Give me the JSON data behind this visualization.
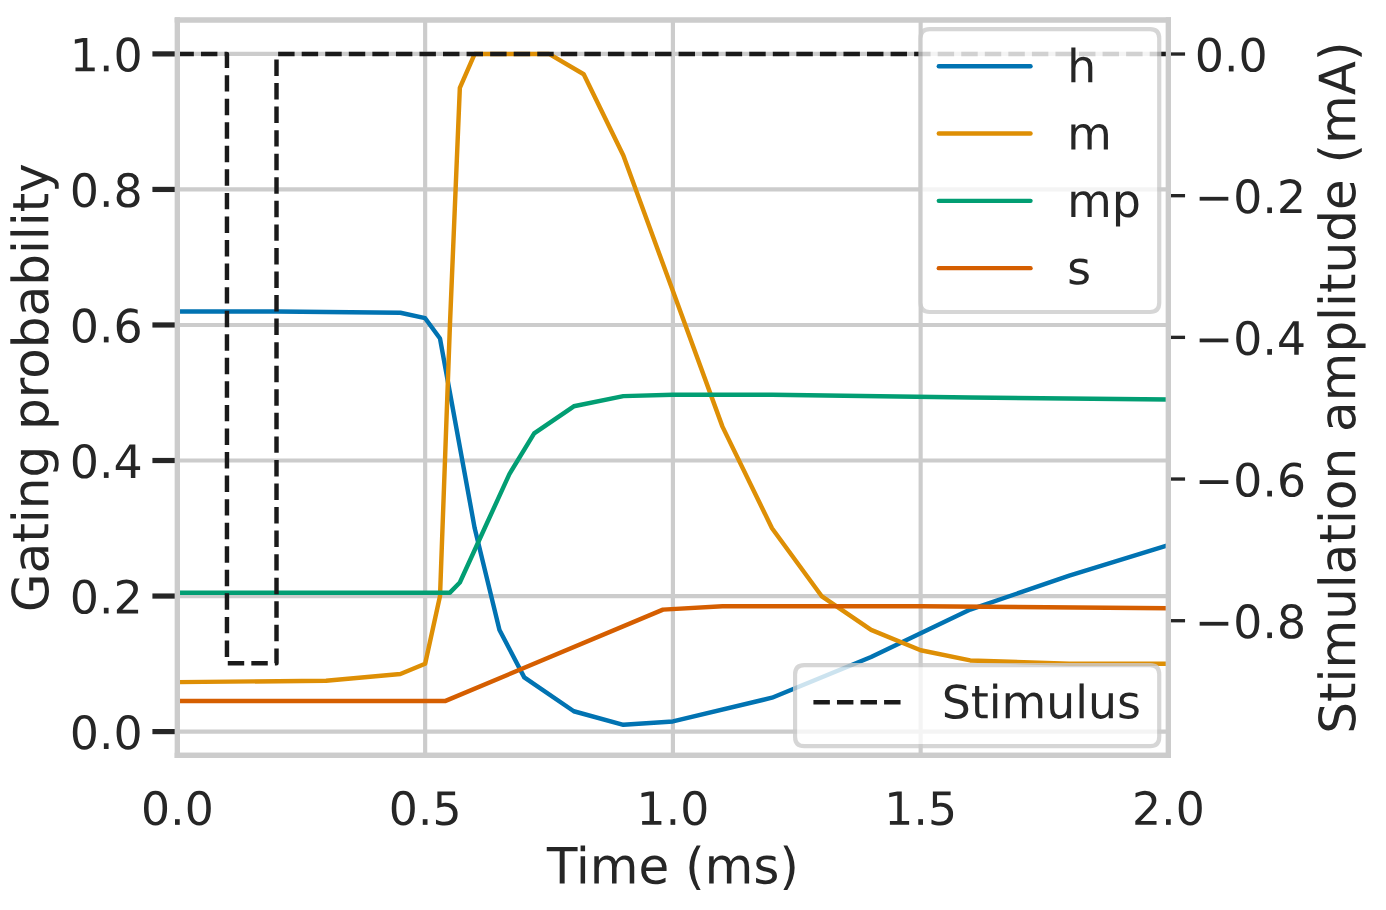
{
  "chart_data": {
    "type": "line",
    "xlabel": "Time (ms)",
    "ylabel": "Gating probability",
    "y2label": "Stimulation amplitude (mA)",
    "xlim": [
      0,
      2.0
    ],
    "xticks": [
      {
        "value": 0,
        "label": "0.0"
      },
      {
        "value": 0.5,
        "label": "0.5"
      },
      {
        "value": 1.0,
        "label": "1.0"
      },
      {
        "value": 1.5,
        "label": "1.5"
      },
      {
        "value": 2.0,
        "label": "2.0"
      }
    ],
    "ylim": [
      -0.035,
      1.05
    ],
    "yticks": [
      {
        "value": 0,
        "label": "0.0"
      },
      {
        "value": 0.2,
        "label": "0.2"
      },
      {
        "value": 0.4,
        "label": "0.4"
      },
      {
        "value": 0.6,
        "label": "0.6"
      },
      {
        "value": 0.8,
        "label": "0.8"
      },
      {
        "value": 1.0,
        "label": "1.0"
      }
    ],
    "y2lim": [
      -0.99,
      0.048
    ],
    "y2ticks": [
      {
        "value": 0,
        "label": "0.0"
      },
      {
        "value": -0.2,
        "label": "−0.2"
      },
      {
        "value": -0.4,
        "label": "−0.4"
      },
      {
        "value": -0.6,
        "label": "−0.6"
      },
      {
        "value": -0.8,
        "label": "−0.8"
      }
    ],
    "grid": true,
    "legend": "top right",
    "line_style": "solid",
    "series": [
      {
        "name": "h",
        "color": "#0173b2",
        "x": [
          0,
          0.2,
          0.45,
          0.5,
          0.53,
          0.55,
          0.6,
          0.65,
          0.7,
          0.8,
          0.9,
          1.0,
          1.2,
          1.4,
          1.6,
          1.8,
          2.0
        ],
        "values": [
          0.62,
          0.62,
          0.618,
          0.61,
          0.58,
          0.5,
          0.3,
          0.15,
          0.08,
          0.03,
          0.01,
          0.015,
          0.05,
          0.11,
          0.18,
          0.23,
          0.275
        ]
      },
      {
        "name": "m",
        "color": "#de8f05",
        "x": [
          0,
          0.3,
          0.45,
          0.5,
          0.53,
          0.55,
          0.57,
          0.6,
          0.75,
          0.82,
          0.9,
          1.0,
          1.1,
          1.2,
          1.3,
          1.4,
          1.5,
          1.6,
          1.8,
          2.0
        ],
        "values": [
          0.073,
          0.075,
          0.085,
          0.1,
          0.2,
          0.6,
          0.95,
          1.0,
          1.0,
          0.97,
          0.85,
          0.65,
          0.45,
          0.3,
          0.2,
          0.15,
          0.12,
          0.105,
          0.1,
          0.1
        ]
      },
      {
        "name": "mp",
        "color": "#029e73",
        "x": [
          0,
          0.55,
          0.57,
          0.62,
          0.67,
          0.72,
          0.8,
          0.9,
          1.0,
          1.2,
          1.6,
          2.0
        ],
        "values": [
          0.205,
          0.205,
          0.22,
          0.3,
          0.38,
          0.44,
          0.48,
          0.495,
          0.497,
          0.497,
          0.493,
          0.49
        ]
      },
      {
        "name": "s",
        "color": "#d55e00",
        "x": [
          0,
          0.54,
          0.98,
          1.1,
          1.5,
          2.0
        ],
        "values": [
          0.045,
          0.045,
          0.18,
          0.185,
          0.185,
          0.182
        ]
      },
      {
        "name": "Stimulus",
        "color": "#1a1a1a",
        "axis": "y2",
        "line_style": "dashed",
        "x": [
          0,
          0.1,
          0.1,
          0.2,
          0.2,
          2.0
        ],
        "values": [
          0,
          0,
          -0.86,
          -0.86,
          0,
          0
        ]
      }
    ]
  }
}
